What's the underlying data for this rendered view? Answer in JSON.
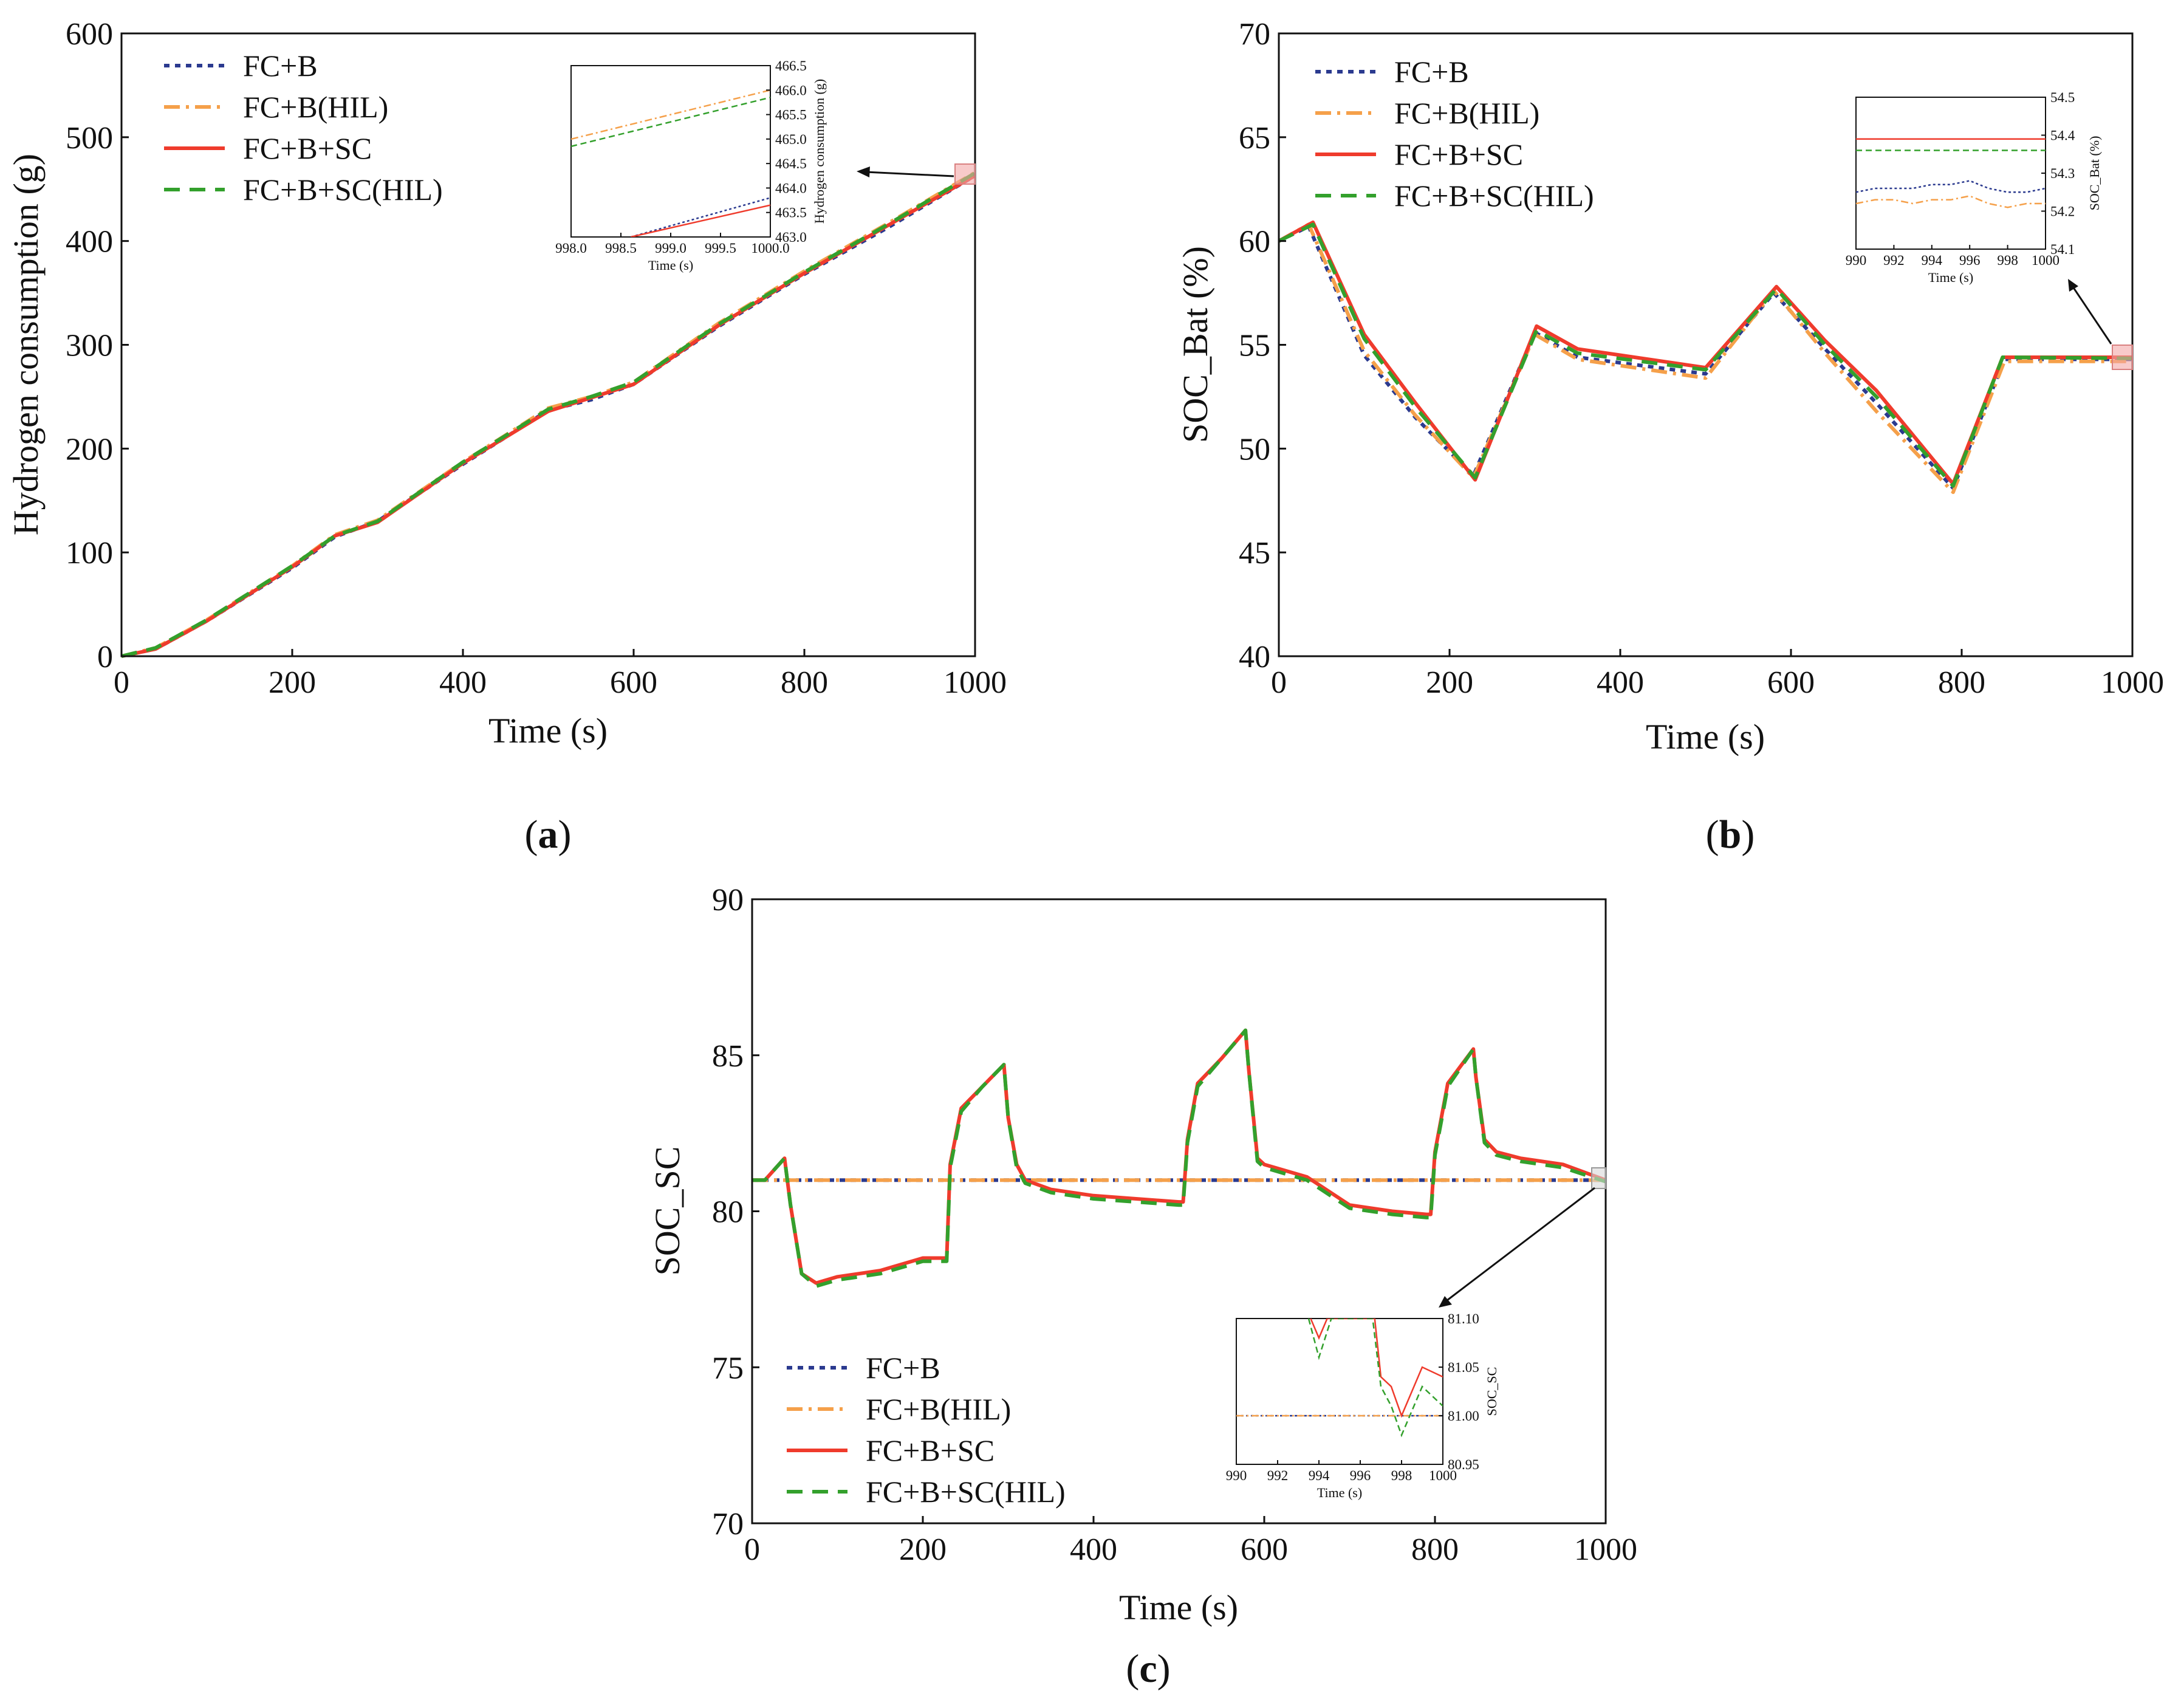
{
  "colors": {
    "fc_b": "#2b3a8f",
    "fc_b_hil": "#f5a04a",
    "fc_b_sc": "#ef3b2c",
    "fc_b_sc_hil": "#33a02c"
  },
  "chart_data": [
    {
      "id": "a",
      "panel_label": "(a)",
      "panel_letter": "a",
      "type": "line",
      "xlabel": "Time (s)",
      "ylabel": "Hydrogen consumption (g)",
      "xlim": [
        0,
        1000
      ],
      "ylim": [
        0,
        600
      ],
      "xticks": [
        0,
        200,
        400,
        600,
        800,
        1000
      ],
      "yticks": [
        0,
        100,
        200,
        300,
        400,
        500,
        600
      ],
      "legend_position": "top-left",
      "series": [
        {
          "name": "FC+B",
          "style": "dotted",
          "x": [
            0,
            40,
            100,
            200,
            250,
            300,
            400,
            500,
            550,
            600,
            700,
            800,
            900,
            1000
          ],
          "y": [
            0,
            7,
            34,
            85,
            115,
            130,
            185,
            237,
            247,
            262,
            318,
            368,
            414,
            463
          ]
        },
        {
          "name": "FC+B(HIL)",
          "style": "dashdot",
          "x": [
            0,
            40,
            100,
            200,
            250,
            300,
            400,
            500,
            550,
            600,
            700,
            800,
            900,
            1000
          ],
          "y": [
            0,
            8,
            35,
            87,
            117,
            131,
            187,
            239,
            250,
            264,
            321,
            371,
            418,
            466
          ]
        },
        {
          "name": "FC+B+SC",
          "style": "solid",
          "x": [
            0,
            40,
            100,
            200,
            250,
            300,
            400,
            500,
            550,
            600,
            700,
            800,
            900,
            1000
          ],
          "y": [
            0,
            7,
            34,
            86,
            116,
            129,
            186,
            236,
            249,
            262,
            319,
            369,
            416,
            463
          ]
        },
        {
          "name": "FC+B+SC(HIL)",
          "style": "dashed",
          "x": [
            0,
            40,
            100,
            200,
            250,
            300,
            400,
            500,
            550,
            600,
            700,
            800,
            900,
            1000
          ],
          "y": [
            0,
            8,
            35,
            87,
            116,
            130,
            187,
            238,
            250,
            264,
            320,
            370,
            417,
            465.5
          ]
        }
      ],
      "inset": {
        "xlabel": "Time (s)",
        "ylabel": "Hydrogen consumption (g)",
        "xlim": [
          998.0,
          1000.0
        ],
        "ylim": [
          463.0,
          466.5
        ],
        "xticks": [
          "998.0",
          "998.5",
          "999.0",
          "999.5",
          "1000.0"
        ],
        "yticks": [
          "463.0",
          "463.5",
          "464.0",
          "464.5",
          "465.0",
          "465.5",
          "466.0",
          "466.5"
        ],
        "series": [
          {
            "name": "FC+B",
            "x": [
              998.6,
              1000.0
            ],
            "y": [
              463.0,
              463.8
            ]
          },
          {
            "name": "FC+B(HIL)",
            "x": [
              998.0,
              1000.0
            ],
            "y": [
              465.0,
              466.0
            ]
          },
          {
            "name": "FC+B+SC",
            "x": [
              998.6,
              1000.0
            ],
            "y": [
              463.0,
              463.65
            ]
          },
          {
            "name": "FC+B+SC(HIL)",
            "x": [
              998.0,
              1000.0
            ],
            "y": [
              464.85,
              465.85
            ]
          }
        ]
      }
    },
    {
      "id": "b",
      "panel_label": "(b)",
      "panel_letter": "b",
      "type": "line",
      "xlabel": "Time (s)",
      "ylabel": "SOC_Bat (%)",
      "xlim": [
        0,
        1000
      ],
      "ylim": [
        40,
        70
      ],
      "xticks": [
        0,
        200,
        400,
        600,
        800,
        1000
      ],
      "yticks": [
        40,
        45,
        50,
        55,
        60,
        65,
        70
      ],
      "legend_position": "top-left",
      "series": [
        {
          "name": "FC+B",
          "style": "dotted",
          "x": [
            0,
            35,
            100,
            160,
            228,
            300,
            350,
            500,
            580,
            640,
            700,
            790,
            850,
            1000
          ],
          "y": [
            60,
            60.7,
            54.5,
            51.5,
            48.7,
            55.6,
            54.4,
            53.6,
            57.5,
            54.8,
            52.2,
            48.1,
            54.3,
            54.3
          ]
        },
        {
          "name": "FC+B(HIL)",
          "style": "dashdot",
          "x": [
            0,
            35,
            100,
            160,
            228,
            300,
            350,
            500,
            580,
            640,
            700,
            790,
            850,
            1000
          ],
          "y": [
            60,
            60.8,
            54.7,
            51.6,
            48.6,
            55.5,
            54.3,
            53.4,
            57.6,
            54.6,
            51.8,
            47.9,
            54.2,
            54.2
          ]
        },
        {
          "name": "FC+B+SC",
          "style": "solid",
          "x": [
            0,
            40,
            100,
            160,
            230,
            302,
            350,
            500,
            583,
            640,
            700,
            790,
            848,
            1000
          ],
          "y": [
            60,
            60.9,
            55.5,
            52.2,
            48.5,
            55.9,
            54.8,
            53.9,
            57.8,
            55.2,
            52.8,
            48.3,
            54.4,
            54.4
          ]
        },
        {
          "name": "FC+B+SC(HIL)",
          "style": "dashed",
          "x": [
            0,
            40,
            100,
            160,
            230,
            302,
            350,
            500,
            583,
            640,
            700,
            790,
            848,
            1000
          ],
          "y": [
            60,
            60.8,
            55.3,
            52.0,
            48.6,
            55.7,
            54.6,
            53.8,
            57.7,
            55.0,
            52.5,
            48.2,
            54.4,
            54.35
          ]
        }
      ],
      "inset": {
        "xlabel": "Time (s)",
        "ylabel": "SOC_Bat (%)",
        "xlim": [
          990,
          1000
        ],
        "ylim": [
          54.1,
          54.5
        ],
        "xticks": [
          "990",
          "992",
          "994",
          "996",
          "998",
          "1000"
        ],
        "yticks": [
          "54.1",
          "54.2",
          "54.3",
          "54.4",
          "54.5"
        ],
        "series": [
          {
            "name": "FC+B",
            "x": [
              990,
              991,
              992,
              993,
              994,
              995,
              996,
              997,
              998,
              999,
              1000
            ],
            "y": [
              54.25,
              54.26,
              54.26,
              54.26,
              54.27,
              54.27,
              54.28,
              54.26,
              54.25,
              54.25,
              54.26
            ]
          },
          {
            "name": "FC+B(HIL)",
            "x": [
              990,
              991,
              992,
              993,
              994,
              995,
              996,
              997,
              998,
              999,
              1000
            ],
            "y": [
              54.22,
              54.23,
              54.23,
              54.22,
              54.23,
              54.23,
              54.24,
              54.22,
              54.21,
              54.22,
              54.22
            ]
          },
          {
            "name": "FC+B+SC",
            "x": [
              990,
              1000
            ],
            "y": [
              54.39,
              54.39
            ]
          },
          {
            "name": "FC+B+SC(HIL)",
            "x": [
              990,
              1000
            ],
            "y": [
              54.36,
              54.36
            ]
          }
        ]
      }
    },
    {
      "id": "c",
      "panel_label": "(c)",
      "panel_letter": "c",
      "type": "line",
      "xlabel": "Time (s)",
      "ylabel": "SOC_SC",
      "xlim": [
        0,
        1000
      ],
      "ylim": [
        70,
        90
      ],
      "xticks": [
        0,
        200,
        400,
        600,
        800,
        1000
      ],
      "yticks": [
        70,
        75,
        80,
        85,
        90
      ],
      "legend_position": "bottom-left",
      "series": [
        {
          "name": "FC+B",
          "style": "dotted",
          "x": [
            0,
            1000
          ],
          "y": [
            81,
            81
          ]
        },
        {
          "name": "FC+B(HIL)",
          "style": "dashdot",
          "x": [
            0,
            1000
          ],
          "y": [
            81,
            81
          ]
        },
        {
          "name": "FC+B+SC",
          "style": "solid",
          "x": [
            0,
            15,
            38,
            45,
            58,
            75,
            100,
            150,
            200,
            228,
            232,
            245,
            270,
            295,
            300,
            310,
            320,
            350,
            400,
            450,
            500,
            505,
            510,
            522,
            550,
            578,
            582,
            592,
            600,
            650,
            700,
            750,
            790,
            795,
            800,
            815,
            845,
            848,
            858,
            872,
            900,
            950,
            1000
          ],
          "y": [
            81,
            81,
            81.7,
            80.2,
            78,
            77.7,
            77.9,
            78.1,
            78.5,
            78.5,
            81.5,
            83.3,
            84,
            84.7,
            83,
            81.5,
            81,
            80.7,
            80.5,
            80.4,
            80.3,
            80.3,
            82.3,
            84.1,
            84.9,
            85.8,
            84.5,
            81.7,
            81.5,
            81.1,
            80.2,
            80.0,
            79.9,
            79.9,
            81.9,
            84.1,
            85.2,
            84.3,
            82.3,
            81.9,
            81.7,
            81.5,
            81.0
          ]
        },
        {
          "name": "FC+B+SC(HIL)",
          "style": "dashed",
          "x": [
            0,
            15,
            38,
            45,
            58,
            75,
            100,
            150,
            200,
            228,
            232,
            245,
            270,
            295,
            300,
            310,
            320,
            350,
            400,
            450,
            500,
            505,
            510,
            522,
            550,
            578,
            582,
            592,
            600,
            650,
            700,
            750,
            790,
            795,
            800,
            815,
            845,
            848,
            858,
            872,
            900,
            950,
            1000
          ],
          "y": [
            81,
            81,
            81.7,
            80.2,
            78,
            77.6,
            77.8,
            78.0,
            78.4,
            78.4,
            81.4,
            83.2,
            84,
            84.7,
            83,
            81.4,
            80.9,
            80.6,
            80.4,
            80.3,
            80.2,
            80.2,
            82.2,
            84,
            84.9,
            85.8,
            84.5,
            81.6,
            81.4,
            81.0,
            80.1,
            79.9,
            79.8,
            79.8,
            81.8,
            84,
            85.2,
            84.3,
            82.2,
            81.8,
            81.6,
            81.4,
            80.95
          ]
        }
      ],
      "inset": {
        "xlabel": "Time (s)",
        "ylabel": "SOC_SC",
        "xlim": [
          990,
          1000
        ],
        "ylim": [
          80.95,
          81.1
        ],
        "xticks": [
          "990",
          "992",
          "994",
          "996",
          "998",
          "1000"
        ],
        "yticks": [
          "80.95",
          "81.00",
          "81.05",
          "81.10"
        ],
        "series": [
          {
            "name": "FC+B",
            "x": [
              990,
              1000
            ],
            "y": [
              81.0,
              81.0
            ]
          },
          {
            "name": "FC+B(HIL)",
            "x": [
              990,
              1000
            ],
            "y": [
              81.0,
              81.0
            ]
          },
          {
            "name": "FC+B+SC",
            "x": [
              993.6,
              994.0,
              994.4,
              996.7,
              997.0,
              997.5,
              998.0,
              999.0,
              1000.0
            ],
            "y": [
              81.1,
              81.08,
              81.1,
              81.1,
              81.04,
              81.03,
              81.0,
              81.05,
              81.04
            ]
          },
          {
            "name": "FC+B+SC(HIL)",
            "x": [
              993.5,
              994.0,
              994.6,
              996.6,
              997.0,
              997.5,
              998.0,
              999.0,
              1000.0
            ],
            "y": [
              81.1,
              81.06,
              81.1,
              81.1,
              81.03,
              81.01,
              80.98,
              81.03,
              81.01
            ]
          }
        ]
      }
    }
  ]
}
